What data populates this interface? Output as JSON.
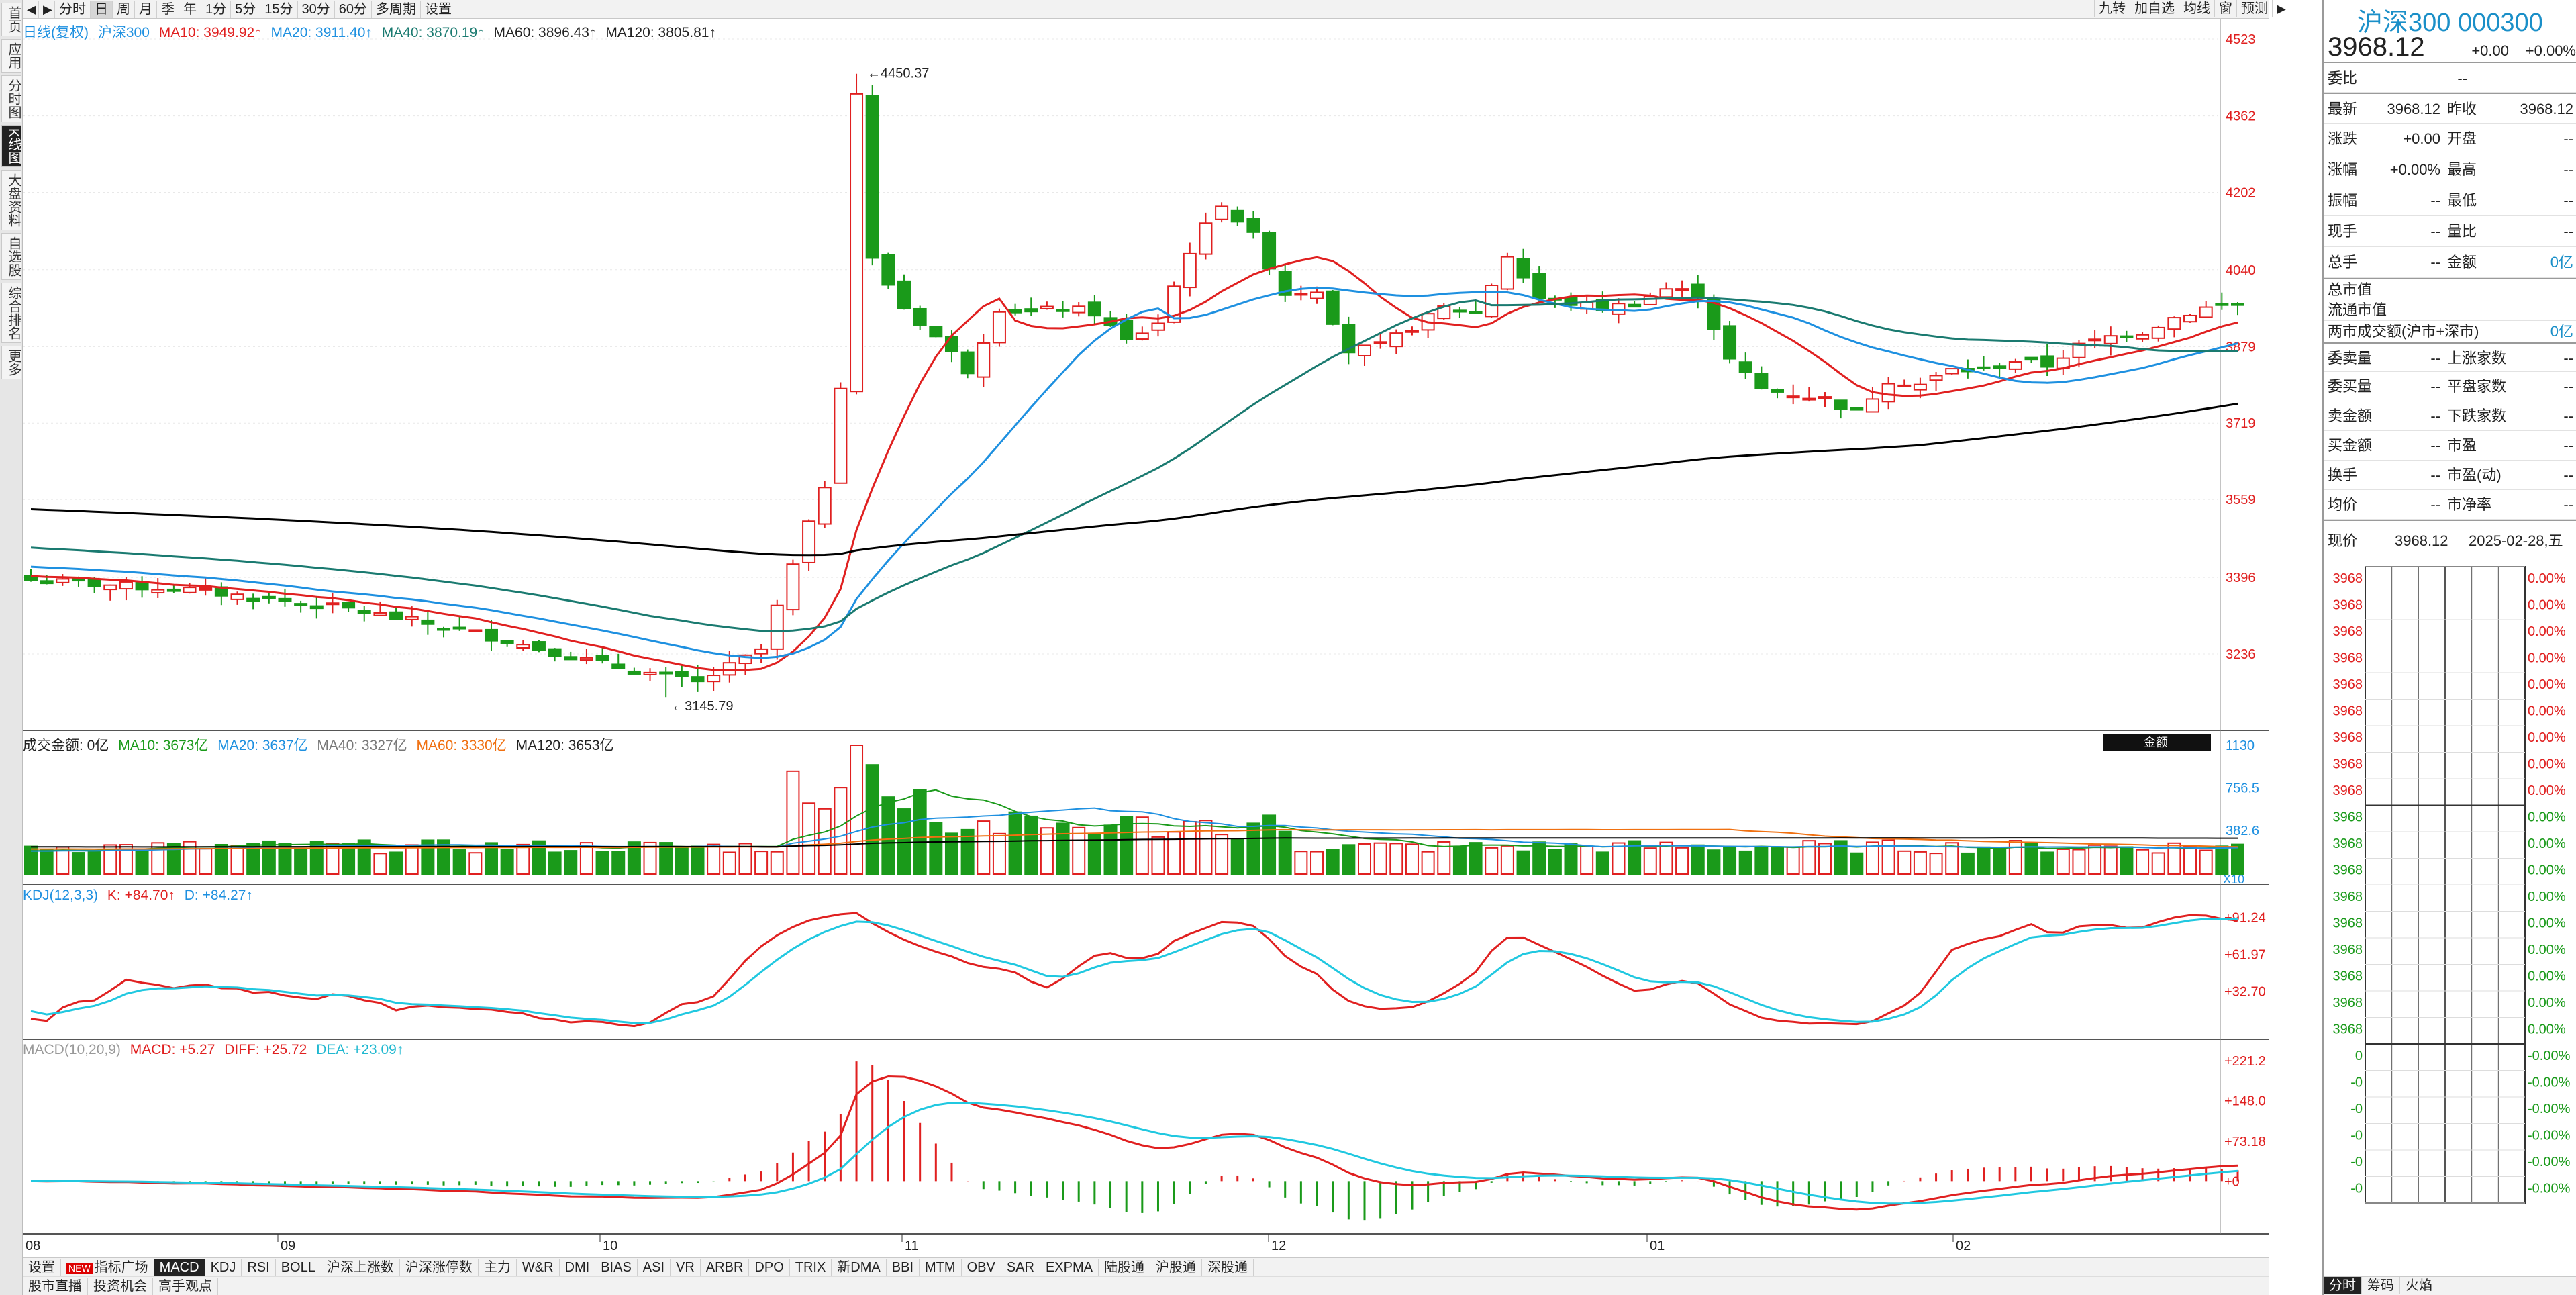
{
  "sidebar": {
    "items": [
      "首页",
      "应用",
      "分时图",
      "K线图",
      "大盘资料",
      "自选股",
      "综合排名",
      "更多"
    ],
    "active_index": 3
  },
  "toolbar": {
    "items": [
      "分时",
      "日",
      "周",
      "月",
      "季",
      "年",
      "1分",
      "5分",
      "15分",
      "30分",
      "60分",
      "多周期",
      "设置"
    ],
    "active_index": 1,
    "right_items": [
      "九转",
      "加自选",
      "均线",
      "窗",
      "预测"
    ]
  },
  "main_legend": {
    "period": "日线(复权)",
    "name": "沪深300",
    "ma10": "MA10: 3949.92↑",
    "ma20": "MA20: 3911.40↑",
    "ma40": "MA40: 3870.19↑",
    "ma60": "MA60: 3896.43↑",
    "ma120": "MA120: 3805.81↑"
  },
  "price_axis": [
    "4523",
    "4362",
    "4202",
    "4040",
    "3879",
    "3719",
    "3559",
    "3396",
    "3236"
  ],
  "annotations": {
    "high": "4450.37",
    "low": "3145.79"
  },
  "volume_legend": {
    "label": "成交金额: 0亿",
    "ma10": "MA10: 3673亿",
    "ma20": "MA20: 3637亿",
    "ma40": "MA40: 3327亿",
    "ma60": "MA60: 3330亿",
    "ma120": "MA120: 3653亿",
    "unit_button": "金额",
    "x10": "X10"
  },
  "volume_axis": [
    "1130",
    "756.5",
    "382.6"
  ],
  "kdj_legend": {
    "label": "KDJ(12,3,3)",
    "k": "K: +84.70↑",
    "d": "D: +84.27↑"
  },
  "kdj_axis": [
    "+91.24",
    "+61.97",
    "+32.70"
  ],
  "macd_legend": {
    "label": "MACD(10,20,9)",
    "macd": "MACD: +5.27",
    "diff": "DIFF: +25.72",
    "dea": "DEA: +23.09↑"
  },
  "macd_axis": [
    "+221.2",
    "+148.0",
    "+73.18",
    "+0"
  ],
  "date_axis": [
    "08",
    "09",
    "10",
    "11",
    "12",
    "01",
    "02"
  ],
  "bottom_tabs": {
    "settings": "设置",
    "new_badge": "NEW",
    "items": [
      "指标广场",
      "MACD",
      "KDJ",
      "RSI",
      "BOLL",
      "沪深上涨数",
      "沪深涨停数",
      "主力",
      "W&R",
      "DMI",
      "BIAS",
      "ASI",
      "VR",
      "ARBR",
      "DPO",
      "TRIX",
      "新DMA",
      "BBI",
      "MTM",
      "OBV",
      "SAR",
      "EXPMA",
      "陆股通",
      "沪股通",
      "深股通"
    ],
    "active": "MACD"
  },
  "bottom_links": [
    "股市直播",
    "投资机会",
    "高手观点"
  ],
  "quote": {
    "title": "沪深300 000300",
    "price": "3968.12",
    "change": "+0.00",
    "pct": "+0.00%",
    "weibi_label": "委比",
    "weibi": "--",
    "rows": [
      {
        "l": "最新",
        "v": "3968.12",
        "l2": "昨收",
        "v2": "3968.12"
      },
      {
        "l": "涨跌",
        "v": "+0.00",
        "l2": "开盘",
        "v2": "--"
      },
      {
        "l": "涨幅",
        "v": "+0.00%",
        "l2": "最高",
        "v2": "--"
      },
      {
        "l": "振幅",
        "v": "--",
        "l2": "最低",
        "v2": "--"
      },
      {
        "l": "现手",
        "v": "--",
        "l2": "量比",
        "v2": "--"
      },
      {
        "l": "总手",
        "v": "--",
        "l2": "金额",
        "v2": "0亿"
      }
    ],
    "mv_rows": [
      {
        "l": "总市值",
        "v": ""
      },
      {
        "l": "流通市值",
        "v": ""
      },
      {
        "l": "两市成交额(沪市+深市)",
        "v": "0亿"
      }
    ],
    "stat_rows": [
      {
        "l": "委卖量",
        "v": "--",
        "l2": "上涨家数",
        "v2": "--"
      },
      {
        "l": "委买量",
        "v": "--",
        "l2": "平盘家数",
        "v2": "--"
      },
      {
        "l": "卖金额",
        "v": "--",
        "l2": "下跌家数",
        "v2": "--"
      },
      {
        "l": "买金额",
        "v": "--",
        "l2": "市盈",
        "v2": "--"
      },
      {
        "l": "换手",
        "v": "--",
        "l2": "市盈(动)",
        "v2": "--"
      },
      {
        "l": "均价",
        "v": "--",
        "l2": "市净率",
        "v2": "--"
      }
    ],
    "now_label": "现价",
    "now_price": "3968.12",
    "now_date": "2025-02-28,五",
    "grid_price": "3968",
    "grid_pct": "0.00%",
    "grid_zero": "0",
    "grid_neg": "-0",
    "grid_negpct": "-0.00%",
    "bottom_tabs": [
      "分时",
      "筹码",
      "火焰"
    ]
  },
  "colors": {
    "up": "#e02020",
    "down": "#1a9a1a",
    "ma10": "#e02020",
    "ma20": "#1e90e0",
    "ma40": "#1a7a70",
    "ma60": "#f07010",
    "ma120": "#000000",
    "k": "#e02020",
    "d": "#20c8e0"
  }
}
